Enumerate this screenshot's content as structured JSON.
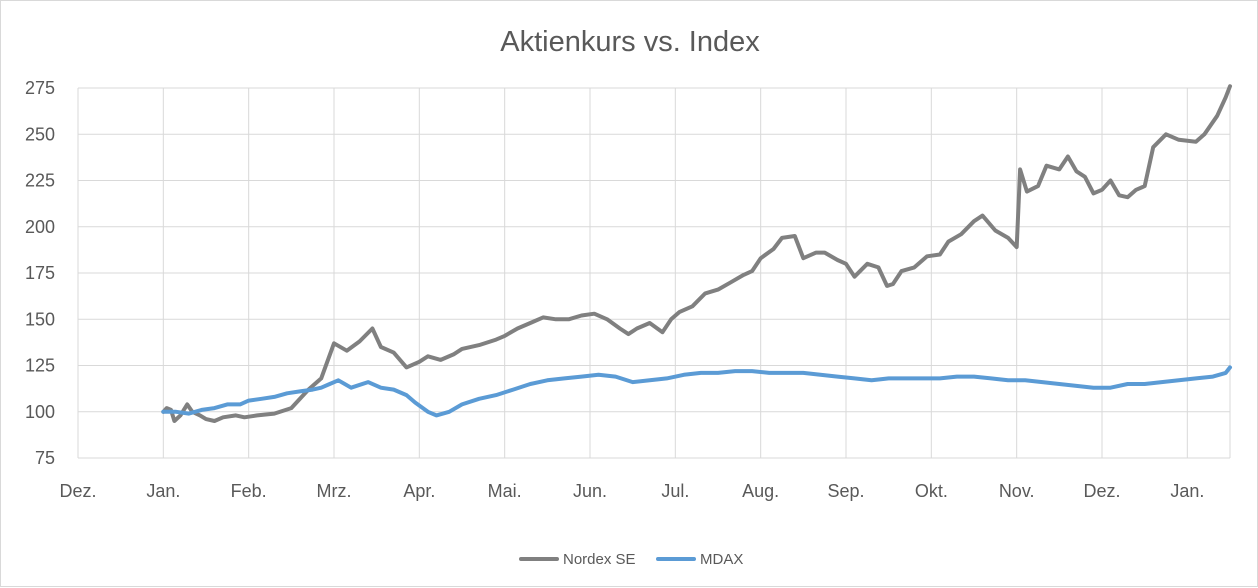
{
  "chart_data": {
    "type": "line",
    "title": "Aktienkurs vs. Index",
    "xlabel": "",
    "ylabel": "",
    "categories": [
      "Dez.",
      "Jan.",
      "Feb.",
      "Mrz.",
      "Apr.",
      "Mai.",
      "Jun.",
      "Jul.",
      "Aug.",
      "Sep.",
      "Okt.",
      "Nov.",
      "Dez.",
      "Jan."
    ],
    "yticks": [
      75,
      100,
      125,
      150,
      175,
      200,
      225,
      250,
      275
    ],
    "ylim": [
      75,
      275
    ],
    "grid": true,
    "legend_position": "bottom",
    "series": [
      {
        "name": "Nordex SE",
        "color": "#808080",
        "points": [
          [
            1.0,
            100
          ],
          [
            1.04,
            102
          ],
          [
            1.09,
            101
          ],
          [
            1.13,
            95
          ],
          [
            1.2,
            98
          ],
          [
            1.28,
            104
          ],
          [
            1.34,
            100
          ],
          [
            1.43,
            98
          ],
          [
            1.5,
            96
          ],
          [
            1.6,
            95
          ],
          [
            1.7,
            97
          ],
          [
            1.85,
            98
          ],
          [
            1.95,
            97
          ],
          [
            2.1,
            98
          ],
          [
            2.3,
            99
          ],
          [
            2.5,
            102
          ],
          [
            2.7,
            112
          ],
          [
            2.85,
            118
          ],
          [
            3.0,
            137
          ],
          [
            3.15,
            133
          ],
          [
            3.3,
            138
          ],
          [
            3.45,
            145
          ],
          [
            3.55,
            135
          ],
          [
            3.7,
            132
          ],
          [
            3.85,
            124
          ],
          [
            4.0,
            127
          ],
          [
            4.1,
            130
          ],
          [
            4.25,
            128
          ],
          [
            4.4,
            131
          ],
          [
            4.5,
            134
          ],
          [
            4.7,
            136
          ],
          [
            4.9,
            139
          ],
          [
            5.0,
            141
          ],
          [
            5.15,
            145
          ],
          [
            5.3,
            148
          ],
          [
            5.45,
            151
          ],
          [
            5.6,
            150
          ],
          [
            5.75,
            150
          ],
          [
            5.9,
            152
          ],
          [
            6.05,
            153
          ],
          [
            6.2,
            150
          ],
          [
            6.35,
            145
          ],
          [
            6.45,
            142
          ],
          [
            6.55,
            145
          ],
          [
            6.7,
            148
          ],
          [
            6.85,
            143
          ],
          [
            6.95,
            150
          ],
          [
            7.05,
            154
          ],
          [
            7.2,
            157
          ],
          [
            7.35,
            164
          ],
          [
            7.5,
            166
          ],
          [
            7.65,
            170
          ],
          [
            7.8,
            174
          ],
          [
            7.9,
            176
          ],
          [
            8.0,
            183
          ],
          [
            8.15,
            188
          ],
          [
            8.25,
            194
          ],
          [
            8.4,
            195
          ],
          [
            8.5,
            183
          ],
          [
            8.65,
            186
          ],
          [
            8.75,
            186
          ],
          [
            8.9,
            182
          ],
          [
            9.0,
            180
          ],
          [
            9.1,
            173
          ],
          [
            9.25,
            180
          ],
          [
            9.38,
            178
          ],
          [
            9.48,
            168
          ],
          [
            9.55,
            169
          ],
          [
            9.65,
            176
          ],
          [
            9.8,
            178
          ],
          [
            9.95,
            184
          ],
          [
            10.1,
            185
          ],
          [
            10.2,
            192
          ],
          [
            10.35,
            196
          ],
          [
            10.5,
            203
          ],
          [
            10.6,
            206
          ],
          [
            10.75,
            198
          ],
          [
            10.9,
            194
          ],
          [
            11.0,
            189
          ],
          [
            11.04,
            231
          ],
          [
            11.12,
            219
          ],
          [
            11.25,
            222
          ],
          [
            11.35,
            233
          ],
          [
            11.5,
            231
          ],
          [
            11.6,
            238
          ],
          [
            11.7,
            230
          ],
          [
            11.8,
            227
          ],
          [
            11.9,
            218
          ],
          [
            12.0,
            220
          ],
          [
            12.1,
            225
          ],
          [
            12.2,
            217
          ],
          [
            12.3,
            216
          ],
          [
            12.4,
            220
          ],
          [
            12.5,
            222
          ],
          [
            12.6,
            243
          ],
          [
            12.75,
            250
          ],
          [
            12.9,
            247
          ],
          [
            13.1,
            246
          ],
          [
            13.2,
            250
          ],
          [
            13.35,
            260
          ],
          [
            13.45,
            270
          ],
          [
            13.5,
            276
          ]
        ]
      },
      {
        "name": "MDAX",
        "color": "#5b9bd5",
        "points": [
          [
            1.0,
            100
          ],
          [
            1.15,
            100
          ],
          [
            1.3,
            99
          ],
          [
            1.45,
            101
          ],
          [
            1.6,
            102
          ],
          [
            1.75,
            104
          ],
          [
            1.9,
            104
          ],
          [
            2.0,
            106
          ],
          [
            2.15,
            107
          ],
          [
            2.3,
            108
          ],
          [
            2.45,
            110
          ],
          [
            2.6,
            111
          ],
          [
            2.75,
            112
          ],
          [
            2.85,
            113
          ],
          [
            2.95,
            115
          ],
          [
            3.05,
            117
          ],
          [
            3.2,
            113
          ],
          [
            3.4,
            116
          ],
          [
            3.55,
            113
          ],
          [
            3.7,
            112
          ],
          [
            3.85,
            109
          ],
          [
            3.95,
            105
          ],
          [
            4.1,
            100
          ],
          [
            4.2,
            98
          ],
          [
            4.35,
            100
          ],
          [
            4.5,
            104
          ],
          [
            4.7,
            107
          ],
          [
            4.9,
            109
          ],
          [
            5.1,
            112
          ],
          [
            5.3,
            115
          ],
          [
            5.5,
            117
          ],
          [
            5.7,
            118
          ],
          [
            5.9,
            119
          ],
          [
            6.1,
            120
          ],
          [
            6.3,
            119
          ],
          [
            6.5,
            116
          ],
          [
            6.7,
            117
          ],
          [
            6.9,
            118
          ],
          [
            7.1,
            120
          ],
          [
            7.3,
            121
          ],
          [
            7.5,
            121
          ],
          [
            7.7,
            122
          ],
          [
            7.9,
            122
          ],
          [
            8.1,
            121
          ],
          [
            8.3,
            121
          ],
          [
            8.5,
            121
          ],
          [
            8.7,
            120
          ],
          [
            8.9,
            119
          ],
          [
            9.1,
            118
          ],
          [
            9.3,
            117
          ],
          [
            9.5,
            118
          ],
          [
            9.7,
            118
          ],
          [
            9.9,
            118
          ],
          [
            10.1,
            118
          ],
          [
            10.3,
            119
          ],
          [
            10.5,
            119
          ],
          [
            10.7,
            118
          ],
          [
            10.9,
            117
          ],
          [
            11.1,
            117
          ],
          [
            11.3,
            116
          ],
          [
            11.5,
            115
          ],
          [
            11.7,
            114
          ],
          [
            11.9,
            113
          ],
          [
            12.1,
            113
          ],
          [
            12.3,
            115
          ],
          [
            12.5,
            115
          ],
          [
            12.7,
            116
          ],
          [
            12.9,
            117
          ],
          [
            13.1,
            118
          ],
          [
            13.3,
            119
          ],
          [
            13.45,
            121
          ],
          [
            13.5,
            124
          ]
        ]
      }
    ]
  }
}
